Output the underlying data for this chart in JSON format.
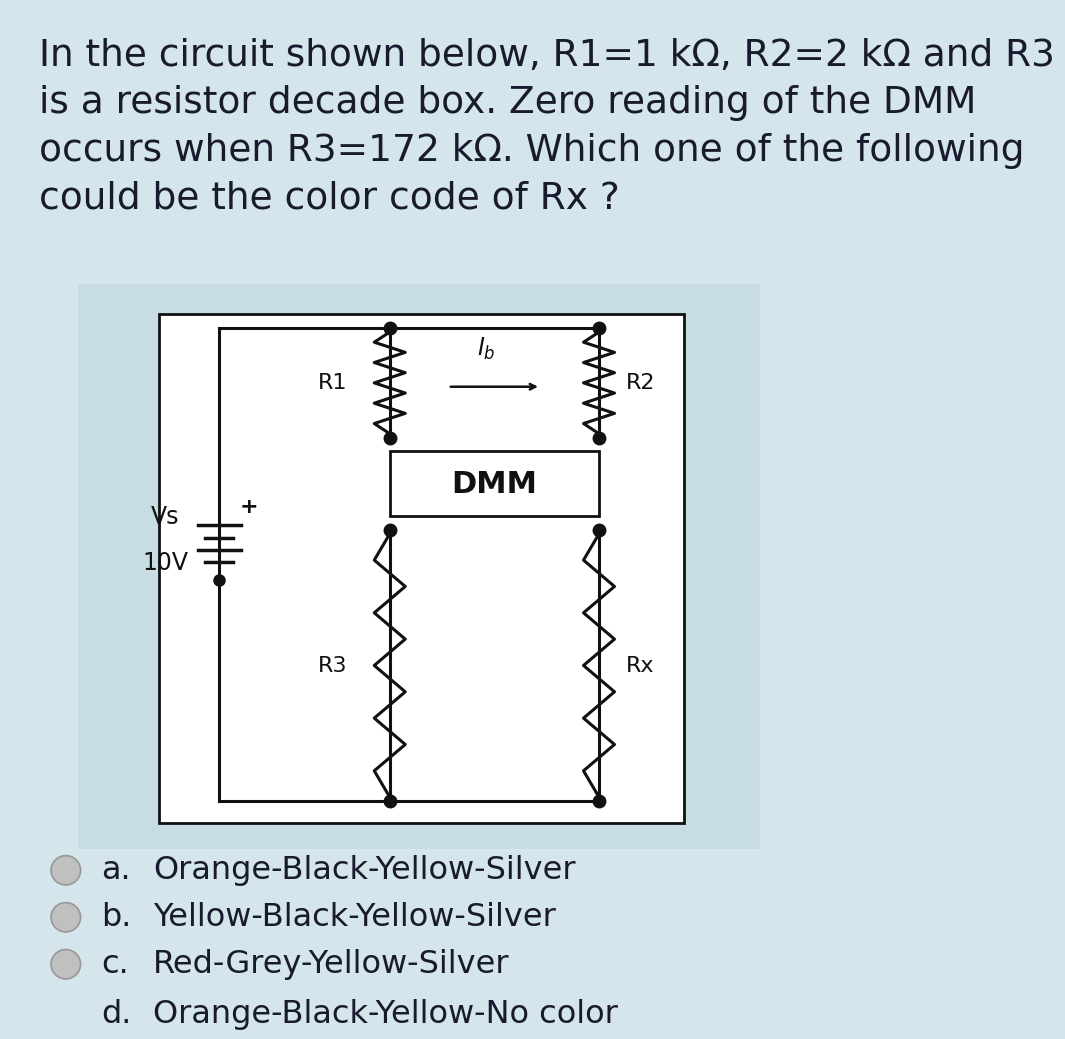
{
  "bg_color": "#d4e5ec",
  "circuit_bg": "#c8dce4",
  "inner_bg": "#ffffff",
  "text_color": "#1a1a2e",
  "options": [
    {
      "label": "a.",
      "text": "Orange-Black-Yellow-Silver"
    },
    {
      "label": "b.",
      "text": "Yellow-Black-Yellow-Silver"
    },
    {
      "label": "c.",
      "text": "Red-Grey-Yellow-Silver"
    },
    {
      "label": "d.",
      "text": "Orange-Black-Yellow-No color"
    }
  ],
  "option_font_size": 23,
  "title_font_size": 27,
  "title_lines": [
    "In the circuit shown below, R1=1 kΩ, R2=2 kΩ and R3",
    "is a resistor decade box. Zero reading of the DMM",
    "occurs when R3=172 kΩ. Which one of the following",
    "could be the color code of Rx ?"
  ]
}
